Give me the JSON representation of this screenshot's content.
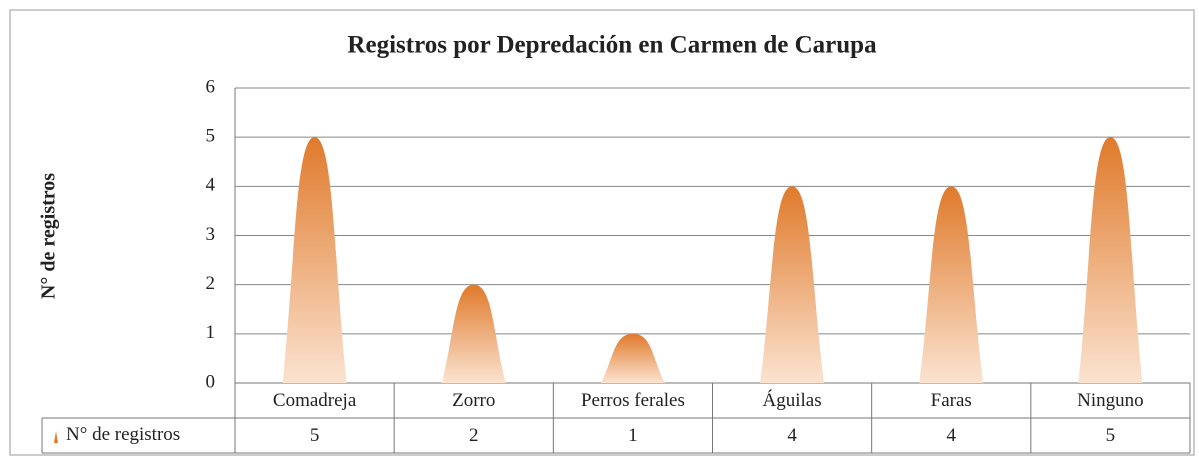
{
  "chart_data": {
    "type": "bar",
    "title": "Registros por Depredación en Carmen de Carupa",
    "y_label": "N° de registros",
    "categories": [
      "Comadreja",
      "Zorro",
      "Perros ferales",
      "Águilas",
      "Faras",
      "Ninguno"
    ],
    "series": [
      {
        "name": "N° de registros",
        "color": "#e07a2b",
        "values": [
          5,
          2,
          1,
          4,
          4,
          5
        ]
      }
    ],
    "ylim": [
      0,
      6
    ],
    "yticks": [
      0,
      1,
      2,
      3,
      4,
      5,
      6
    ],
    "grid": true
  }
}
